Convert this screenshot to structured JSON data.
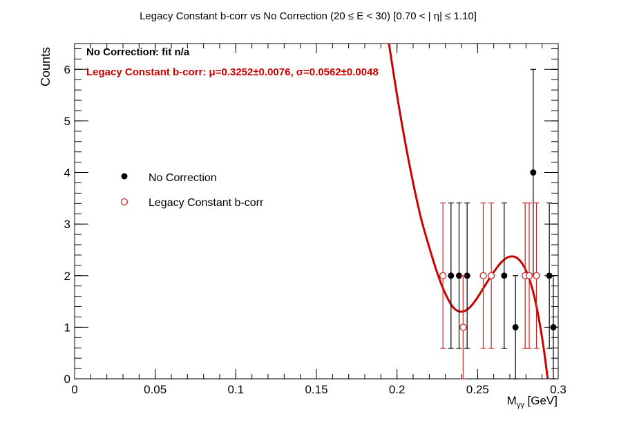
{
  "chart_data": {
    "type": "scatter",
    "title": "Legacy Constant b-corr vs No Correction   (20      ≤ E < 30)   [0.70 < |  η| ≤ 1.10]",
    "xlabel": "M",
    "xlabel_sub": "γγ",
    "xlabel_unit": " [GeV]",
    "ylabel": "Counts",
    "xlim": [
      0,
      0.3
    ],
    "ylim": [
      0,
      6.5
    ],
    "x_ticks": [
      0,
      0.05,
      0.1,
      0.15,
      0.2,
      0.25,
      0.3
    ],
    "x_tick_labels": [
      "0",
      "0.05",
      "0.1",
      "0.15",
      "0.2",
      "0.25",
      "0.3"
    ],
    "y_ticks": [
      0,
      1,
      2,
      3,
      4,
      5,
      6
    ],
    "y_tick_labels": [
      "0",
      "1",
      "2",
      "3",
      "4",
      "5",
      "6"
    ],
    "grid": false,
    "legend_position": "center-left",
    "annotations": [
      {
        "text": "No Correction:  fit n/a",
        "color": "#000000"
      },
      {
        "text": "Legacy Constant b-corr: μ=0.3252±0.0076,  σ=0.0562±0.0048",
        "color": "#cc0000"
      }
    ],
    "series": [
      {
        "name": "No Correction",
        "marker": "filled-circle",
        "color": "#000000",
        "x": [
          0.2335,
          0.2385,
          0.2435,
          0.2665,
          0.2735,
          0.2845,
          0.2945,
          0.297
        ],
        "y": [
          2,
          2,
          2,
          2,
          1,
          4,
          2,
          1
        ],
        "err_low": [
          1.41,
          1.41,
          1.41,
          1.41,
          1.0,
          2.0,
          1.41,
          1.0
        ],
        "err_high": [
          1.41,
          1.41,
          1.41,
          1.41,
          1.0,
          2.0,
          1.41,
          1.0
        ]
      },
      {
        "name": "Legacy Constant b-corr",
        "marker": "open-circle",
        "color": "#cc2222",
        "x": [
          0.2285,
          0.241,
          0.2535,
          0.2585,
          0.2795,
          0.282,
          0.2865
        ],
        "y": [
          2,
          1,
          2,
          2,
          2,
          2,
          2
        ],
        "err_low": [
          1.41,
          1.0,
          1.41,
          1.41,
          1.41,
          1.41,
          1.41
        ],
        "err_high": [
          1.41,
          1.0,
          1.41,
          1.41,
          1.41,
          1.41,
          1.41
        ]
      }
    ],
    "fit_curve": {
      "series": "Legacy Constant b-corr",
      "color": "#cc0000",
      "x": [
        0.195,
        0.2,
        0.205,
        0.21,
        0.215,
        0.22,
        0.225,
        0.23,
        0.235,
        0.24,
        0.245,
        0.25,
        0.255,
        0.26,
        0.265,
        0.27,
        0.275,
        0.28,
        0.285,
        0.29,
        0.2935
      ],
      "y": [
        6.5,
        5.5,
        4.6,
        3.8,
        3.1,
        2.55,
        2.05,
        1.65,
        1.38,
        1.3,
        1.38,
        1.58,
        1.83,
        2.07,
        2.27,
        2.37,
        2.33,
        2.1,
        1.62,
        0.8,
        0.0
      ]
    }
  }
}
